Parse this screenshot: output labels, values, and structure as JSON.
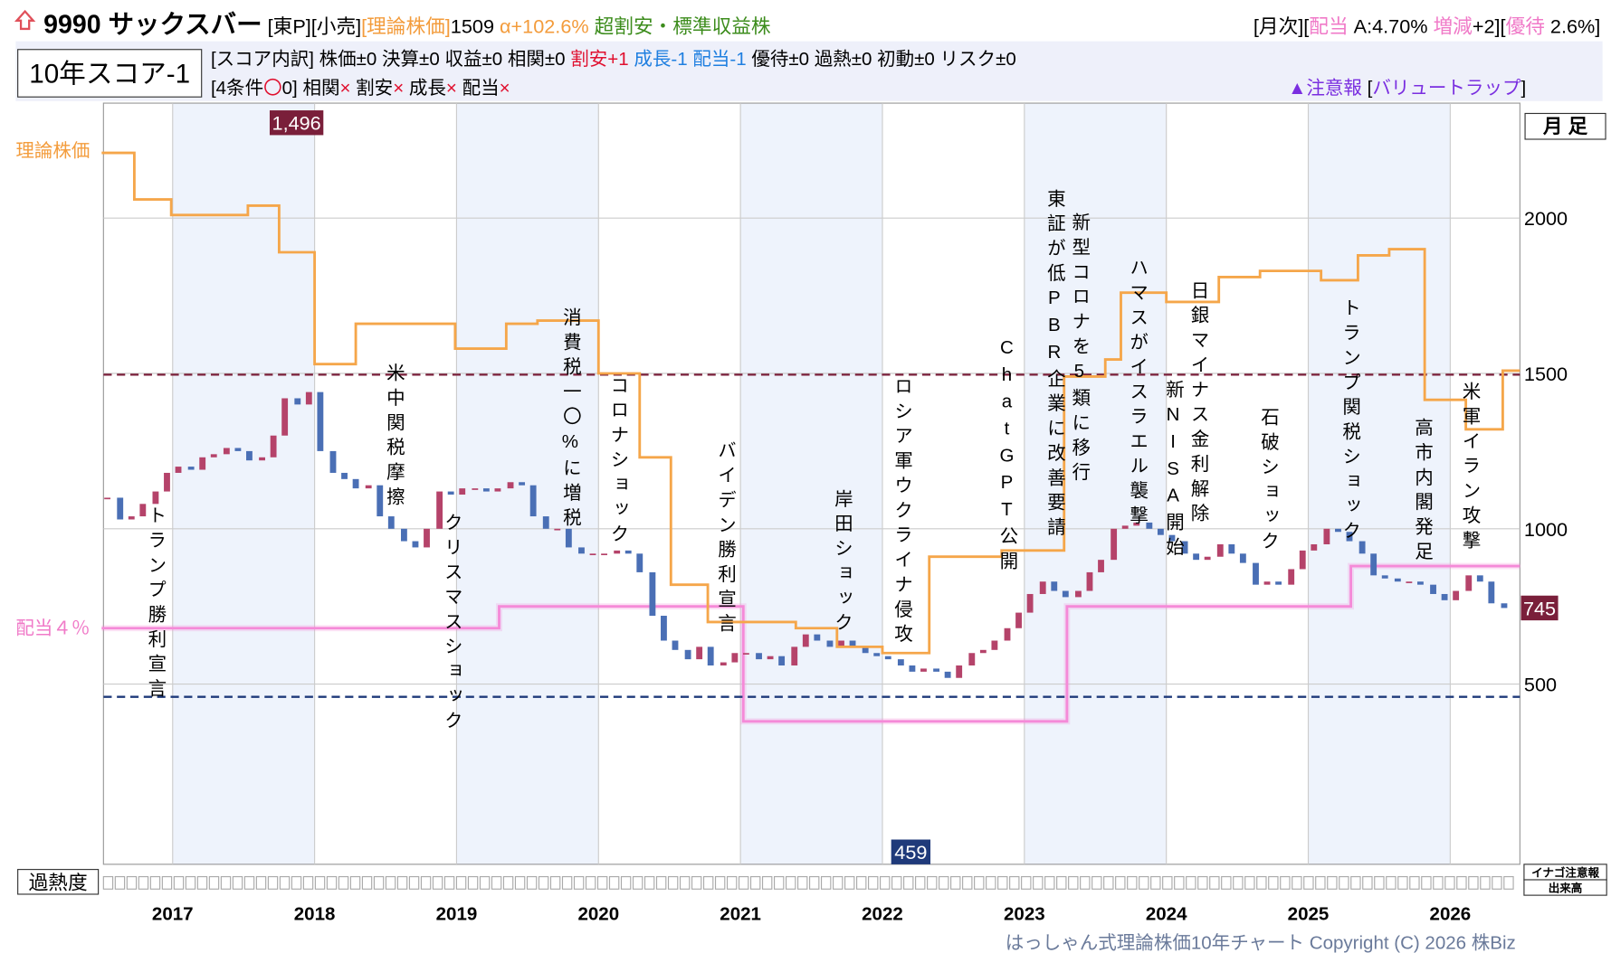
{
  "header": {
    "title_segments": [
      {
        "text": "9990 サックスバー",
        "color": "#000000"
      },
      {
        "text": " [東P][小売]",
        "color": "#000000"
      },
      {
        "text": "[理論株価]",
        "color": "#f39c3c"
      },
      {
        "text": "1509",
        "color": "#000000"
      },
      {
        "text": " α+102.6% ",
        "color": "#f39c3c"
      },
      {
        "text": "超割安・標準収益株",
        "color": "#3c8c1c"
      }
    ],
    "right_segments": [
      {
        "text": "[月次][",
        "color": "#000000"
      },
      {
        "text": "配当",
        "color": "#f07ac8"
      },
      {
        "text": " A:4.70% ",
        "color": "#000000"
      },
      {
        "text": "増減",
        "color": "#f07ac8"
      },
      {
        "text": "+2][",
        "color": "#000000"
      },
      {
        "text": "優待",
        "color": "#f07ac8"
      },
      {
        "text": " 2.6%]",
        "color": "#000000"
      }
    ],
    "score": "10年スコア-1",
    "breakdown": [
      {
        "text": "[スコア内訳] 株価±0 決算±0 収益±0 相関±0 ",
        "color": "#000000"
      },
      {
        "text": "割安+1",
        "color": "#e0102f"
      },
      {
        "text": " 成長-1 配当-1",
        "color": "#1f7fe0"
      },
      {
        "text": " 優待±0 過熱±0 初動±0 リスク±0",
        "color": "#000000"
      }
    ],
    "conditions": [
      {
        "text": "[4条件",
        "color": "#000000"
      },
      {
        "text": "〇",
        "color": "#e0102f"
      },
      {
        "text": "0] 相関",
        "color": "#000000"
      },
      {
        "text": "×",
        "color": "#e0102f"
      },
      {
        "text": " 割安",
        "color": "#000000"
      },
      {
        "text": "×",
        "color": "#e0102f"
      },
      {
        "text": " 成長",
        "color": "#000000"
      },
      {
        "text": "×",
        "color": "#e0102f"
      },
      {
        "text": " 配当",
        "color": "#000000"
      },
      {
        "text": "×",
        "color": "#e0102f"
      }
    ],
    "warning": [
      {
        "text": "▲注意報 ",
        "color": "#7a2ee0"
      },
      {
        "text": "[",
        "color": "#000000"
      },
      {
        "text": "バリュートラップ",
        "color": "#7a2ee0"
      },
      {
        "text": "]",
        "color": "#000000"
      }
    ]
  },
  "chart_data": {
    "type": "candlestick",
    "period": "月 足",
    "xlim": [
      2016.5,
      2026.5
    ],
    "xticks": [
      2017,
      2018,
      2019,
      2020,
      2021,
      2022,
      2023,
      2024,
      2025,
      2026
    ],
    "ylim": [
      -80,
      2370
    ],
    "yticks": [
      500,
      1000,
      1500,
      2000
    ],
    "grid": true,
    "up_color": "#b5436a",
    "down_color": "#4a6fb5",
    "candles": {
      "x": [
        2016.54,
        2016.63,
        2016.71,
        2016.79,
        2016.88,
        2016.96,
        2017.04,
        2017.13,
        2017.21,
        2017.29,
        2017.38,
        2017.46,
        2017.54,
        2017.63,
        2017.71,
        2017.79,
        2017.88,
        2017.96,
        2018.04,
        2018.13,
        2018.21,
        2018.29,
        2018.38,
        2018.46,
        2018.54,
        2018.63,
        2018.71,
        2018.79,
        2018.88,
        2018.96,
        2019.04,
        2019.13,
        2019.21,
        2019.29,
        2019.38,
        2019.46,
        2019.54,
        2019.63,
        2019.71,
        2019.79,
        2019.88,
        2019.96,
        2020.04,
        2020.13,
        2020.21,
        2020.29,
        2020.38,
        2020.46,
        2020.54,
        2020.63,
        2020.71,
        2020.79,
        2020.88,
        2020.96,
        2021.04,
        2021.13,
        2021.21,
        2021.29,
        2021.38,
        2021.46,
        2021.54,
        2021.63,
        2021.71,
        2021.79,
        2021.88,
        2021.96,
        2022.04,
        2022.13,
        2022.21,
        2022.29,
        2022.38,
        2022.46,
        2022.54,
        2022.63,
        2022.71,
        2022.79,
        2022.88,
        2022.96,
        2023.04,
        2023.13,
        2023.21,
        2023.29,
        2023.38,
        2023.46,
        2023.54,
        2023.63,
        2023.71,
        2023.79,
        2023.88,
        2023.96,
        2024.04,
        2024.13,
        2024.21,
        2024.29,
        2024.38,
        2024.46,
        2024.54,
        2024.63,
        2024.71,
        2024.79,
        2024.88,
        2024.96,
        2025.04,
        2025.13,
        2025.21,
        2025.29,
        2025.38,
        2025.46,
        2025.54,
        2025.63,
        2025.71,
        2025.79,
        2025.88,
        2025.96,
        2026.04,
        2026.13,
        2026.21,
        2026.29,
        2026.38
      ],
      "close": [
        1100,
        1030,
        1040,
        1080,
        1120,
        1180,
        1200,
        1190,
        1230,
        1240,
        1260,
        1250,
        1220,
        1230,
        1300,
        1420,
        1400,
        1440,
        1250,
        1180,
        1160,
        1130,
        1140,
        1040,
        1000,
        960,
        940,
        1000,
        1120,
        1110,
        1130,
        1130,
        1120,
        1130,
        1150,
        1140,
        1040,
        1000,
        1000,
        940,
        920,
        920,
        920,
        930,
        920,
        860,
        720,
        640,
        610,
        580,
        620,
        560,
        570,
        600,
        600,
        580,
        590,
        560,
        620,
        660,
        640,
        620,
        640,
        620,
        600,
        590,
        580,
        560,
        540,
        550,
        540,
        520,
        560,
        600,
        610,
        640,
        680,
        730,
        790,
        830,
        800,
        780,
        800,
        860,
        900,
        1000,
        1010,
        1020,
        1000,
        980,
        960,
        920,
        900,
        910,
        950,
        920,
        890,
        820,
        830,
        820,
        870,
        930,
        950,
        1000,
        990,
        960,
        920,
        850,
        840,
        830,
        830,
        820,
        790,
        770,
        800,
        850,
        830,
        760,
        745
      ]
    },
    "theory": {
      "name": "理論株価",
      "color": "#f5a64a",
      "x": [
        2016.5,
        2016.73,
        2016.99,
        2017.53,
        2017.75,
        2018.0,
        2018.29,
        2018.99,
        2019.35,
        2019.57,
        2020.0,
        2020.29,
        2020.51,
        2020.77,
        2021.39,
        2021.68,
        2022.0,
        2022.33,
        2022.84,
        2023.28,
        2023.57,
        2023.68,
        2024.0,
        2024.37,
        2024.66,
        2025.09,
        2025.35,
        2025.57,
        2025.82,
        2026.11,
        2026.37
      ],
      "values": [
        2210,
        2060,
        2010,
        2040,
        1890,
        1530,
        1660,
        1580,
        1660,
        1670,
        1500,
        1230,
        820,
        700,
        680,
        620,
        600,
        910,
        930,
        1490,
        1545,
        1760,
        1730,
        1810,
        1830,
        1800,
        1880,
        1900,
        1415,
        1320,
        1509
      ]
    },
    "dividend": {
      "name": "配当４％",
      "color": "#f58ad8",
      "x": [
        2016.5,
        2019.3,
        2021.02,
        2023.3,
        2025.3
      ],
      "values": [
        680,
        750,
        380,
        750,
        880
      ]
    },
    "high": {
      "value": 1496,
      "label": "1,496"
    },
    "low": 459,
    "last": 745,
    "events": [
      "トランプ勝利宣言",
      "米中関税摩擦",
      "クリスマスショック",
      "消費税一〇%に増税",
      "コロナショック",
      "バイデン勝利宣言",
      "岸田ショック",
      "ロシア軍ウクライナ侵攻",
      "ChatGPT公開",
      "東証が低PBR企業に改善要請",
      "新型コロナを5類に移行",
      "ハマスがイスラエル襲撃",
      "新NISA開始",
      "日銀マイナス金利解除",
      "石破ショック",
      "トランプ関税ショック",
      "高市内閣発足",
      "米軍イラン攻撃"
    ],
    "overheat_label": "過熱度",
    "inago_label": "イナゴ注意報",
    "volume_label": "出来高"
  },
  "footer": "はっしゃん式理論株価10年チャート Copyright (C) 2026 株Biz"
}
